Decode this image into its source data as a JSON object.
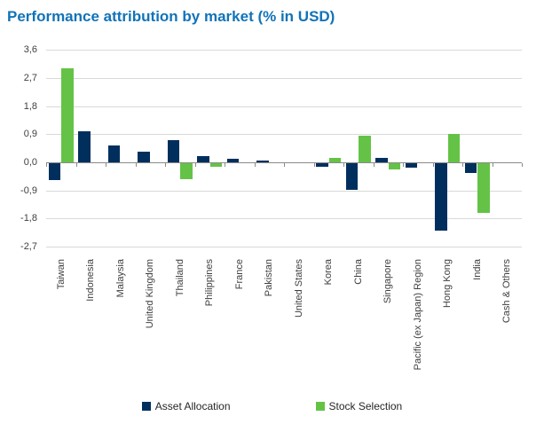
{
  "chart_data": {
    "type": "bar",
    "title": "Performance attribution by market (% in USD)",
    "title_color": "#1173b8",
    "categories": [
      "Taiwan",
      "Indonesia",
      "Malaysia",
      "United Kingdom",
      "Thailand",
      "Philippines",
      "France",
      "Pakistan",
      "United States",
      "Korea",
      "China",
      "Singapore",
      "Pacific (ex Japan) Region",
      "Hong Kong",
      "India",
      "Cash & Others"
    ],
    "series": [
      {
        "name": "Asset Allocation",
        "color": "#002f5e",
        "values": [
          -0.55,
          1.0,
          0.55,
          0.35,
          0.7,
          0.2,
          0.1,
          0.05,
          0,
          -0.1,
          -0.85,
          0.15,
          -0.15,
          -2.15,
          -0.3,
          0
        ]
      },
      {
        "name": "Stock Selection",
        "color": "#64c346",
        "values": [
          3.0,
          0,
          0,
          0,
          -0.5,
          -0.1,
          0,
          0,
          0,
          0.15,
          0.85,
          -0.2,
          0,
          0.9,
          -1.6,
          0
        ]
      }
    ],
    "ylabel": "",
    "xlabel": "",
    "ylim": [
      -2.7,
      3.6
    ],
    "yticks": [
      3.6,
      2.7,
      1.8,
      0.9,
      0.0,
      -0.9,
      -1.8,
      -2.7
    ],
    "ytick_labels": [
      "3,6",
      "2,7",
      "1,8",
      "0,9",
      "0,0",
      "-0,9",
      "-1,8",
      "-2,7"
    ],
    "decimal_separator": ",",
    "grid": true,
    "gridline_color": "#d9d9d9",
    "axis_line_color": "#8a8a8a",
    "legend_position": "bottom"
  }
}
